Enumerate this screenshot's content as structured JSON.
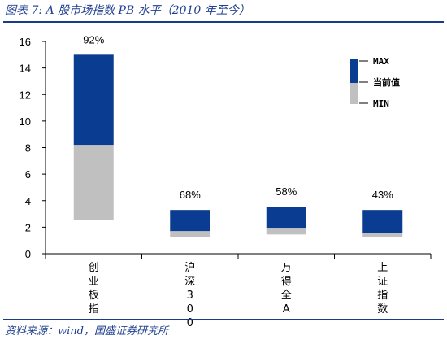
{
  "header": {
    "title": "图表 7: A 股市场指数 PB 水平（2010 年至今）"
  },
  "footer": {
    "source": "资料来源：wind，国盛证券研究所"
  },
  "chart_data": {
    "type": "bar",
    "subtype": "floating-stacked-range",
    "categories": [
      "创业板指",
      "沪深300",
      "万得全A",
      "上证指数"
    ],
    "series": [
      {
        "name": "MAX",
        "values": [
          15.0,
          3.3,
          3.55,
          3.3
        ]
      },
      {
        "name": "当前值",
        "values": [
          8.2,
          1.7,
          1.95,
          1.55
        ]
      },
      {
        "name": "MIN",
        "values": [
          2.55,
          1.25,
          1.45,
          1.25
        ]
      }
    ],
    "percentile_labels": [
      "92%",
      "68%",
      "58%",
      "43%"
    ],
    "ylim": [
      0,
      16
    ],
    "yticks": [
      0,
      2,
      4,
      6,
      8,
      10,
      12,
      14,
      16
    ],
    "legend": {
      "position": "top-right",
      "entries": [
        "MAX",
        "当前值",
        "MIN"
      ]
    },
    "colors": {
      "upper": "#0a3d91",
      "lower": "#c0c0c0"
    },
    "grid": false,
    "title": "",
    "xlabel": "",
    "ylabel": ""
  }
}
